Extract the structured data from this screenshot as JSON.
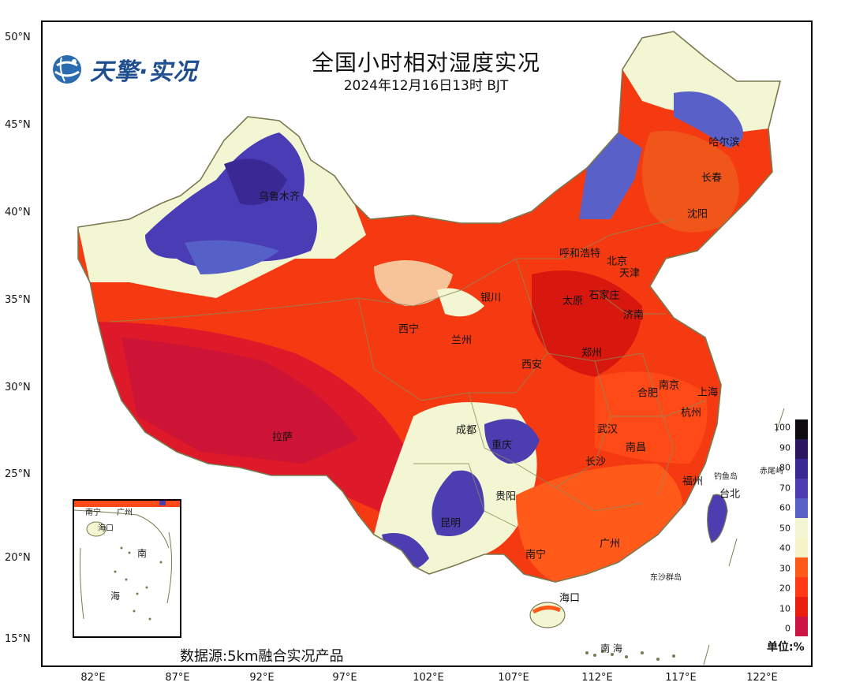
{
  "title": "全国小时相对湿度实况",
  "subtitle": "2024年12月16日13时 BJT",
  "logo_text": "天擎·实况",
  "source": "数据源:5km融合实况产品",
  "unit": "单位:%",
  "lat_labels": [
    "50°N",
    "45°N",
    "40°N",
    "35°N",
    "30°N",
    "25°N",
    "20°N",
    "15°N"
  ],
  "lon_labels": [
    "82°E",
    "87°E",
    "92°E",
    "97°E",
    "102°E",
    "107°E",
    "112°E",
    "117°E",
    "122°E"
  ],
  "cities": {
    "urumqi": "乌鲁木齐",
    "harbin": "哈尔滨",
    "changchun": "长春",
    "shenyang": "沈阳",
    "hohhot": "呼和浩特",
    "beijing": "北京",
    "tianjin": "天津",
    "yinchuan": "银川",
    "taiyuan": "太原",
    "shijiazhuang": "石家庄",
    "jinan": "济南",
    "xining": "西宁",
    "lanzhou": "兰州",
    "zhengzhou": "郑州",
    "xian": "西安",
    "nanjing": "南京",
    "hefei": "合肥",
    "shanghai": "上海",
    "hangzhou": "杭州",
    "lhasa": "拉萨",
    "chengdu": "成都",
    "chongqing": "重庆",
    "wuhan": "武汉",
    "nanchang": "南昌",
    "changsha": "长沙",
    "guiyang": "贵阳",
    "fuzhou": "福州",
    "taipei": "台北",
    "kunming": "昆明",
    "nanning": "南宁",
    "guangzhou": "广州",
    "haikou": "海口"
  },
  "places": {
    "diaoyu": "钓鱼岛",
    "chiwei": "赤尾屿",
    "dongsha": "东沙群岛",
    "nanhai": "南 海"
  },
  "inset": {
    "nanning": "南宁",
    "guangzhou": "广州",
    "haikou": "海口",
    "nan": "南",
    "hai": "海"
  },
  "legend": {
    "ticks": [
      "100",
      "90",
      "80",
      "70",
      "60",
      "50",
      "40",
      "30",
      "20",
      "10",
      "0"
    ],
    "colors": [
      "#0d0a10",
      "#2a1760",
      "#3a2894",
      "#4c3db0",
      "#5960c8",
      "#f2f6d2",
      "#f6f3c6",
      "#ff5a1a",
      "#ff3a14",
      "#e81e0e",
      "#cc1445"
    ]
  }
}
